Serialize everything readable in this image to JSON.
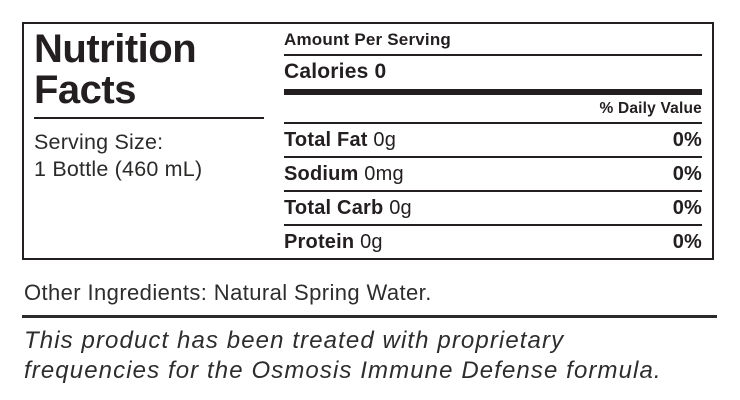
{
  "nutrition_facts": {
    "title_line1": "Nutrition",
    "title_line2": "Facts",
    "serving_size_label": "Serving Size:",
    "serving_size_value": "1 Bottle (460 mL)",
    "amount_per_serving_label": "Amount Per Serving",
    "calories_label": "Calories",
    "calories_value": "0",
    "daily_value_header": "% Daily Value",
    "rows": [
      {
        "name": "Total Fat",
        "amount": "0g",
        "daily_value": "0%"
      },
      {
        "name": "Sodium",
        "amount": "0mg",
        "daily_value": "0%"
      },
      {
        "name": "Total Carb",
        "amount": "0g",
        "daily_value": "0%"
      },
      {
        "name": "Protein",
        "amount": "0g",
        "daily_value": "0%"
      }
    ]
  },
  "other_ingredients_text": "Other Ingredients: Natural Spring Water.",
  "treatment_note": {
    "full_text": "This product has been treated with proprietary frequencies for the Osmosis Immune Defense formula.",
    "line1": "This product has been treated with proprietary",
    "line2": "frequencies for the Osmosis Immune Defense formula."
  },
  "colors": {
    "text_black": "#231f20",
    "background": "#ffffff"
  }
}
